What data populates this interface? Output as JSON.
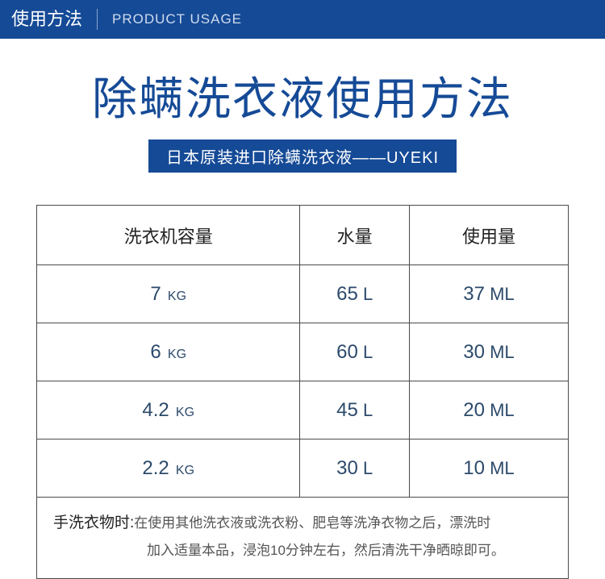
{
  "colors": {
    "brand_blue": "#154a96",
    "title_blue": "#154a96",
    "cell_text": "#2c4a6b"
  },
  "header": {
    "cn": "使用方法",
    "en": "PRODUCT  USAGE"
  },
  "title": "除螨洗衣液使用方法",
  "subtitle": "日本原装进口除螨洗衣液——UYEKI",
  "table": {
    "columns": [
      "洗衣机容量",
      "水量",
      "使用量"
    ],
    "rows": [
      {
        "capacity_num": "7",
        "capacity_unit": "KG",
        "water_num": "65",
        "water_unit": "L",
        "usage_num": "37",
        "usage_unit": "ML"
      },
      {
        "capacity_num": "6",
        "capacity_unit": "KG",
        "water_num": "60",
        "water_unit": "L",
        "usage_num": "30",
        "usage_unit": "ML"
      },
      {
        "capacity_num": "4.2",
        "capacity_unit": "KG",
        "water_num": "45",
        "water_unit": "L",
        "usage_num": "20",
        "usage_unit": "ML"
      },
      {
        "capacity_num": "2.2",
        "capacity_unit": "KG",
        "water_num": "30",
        "water_unit": "L",
        "usage_num": "10",
        "usage_unit": "ML"
      }
    ]
  },
  "footer": {
    "label": "手洗衣物时:",
    "line1": "在使用其他洗衣液或洗衣粉、肥皂等洗净衣物之后，漂洗时",
    "line2": "加入适量本品，浸泡10分钟左右，然后清洗干净晒晾即可。"
  }
}
